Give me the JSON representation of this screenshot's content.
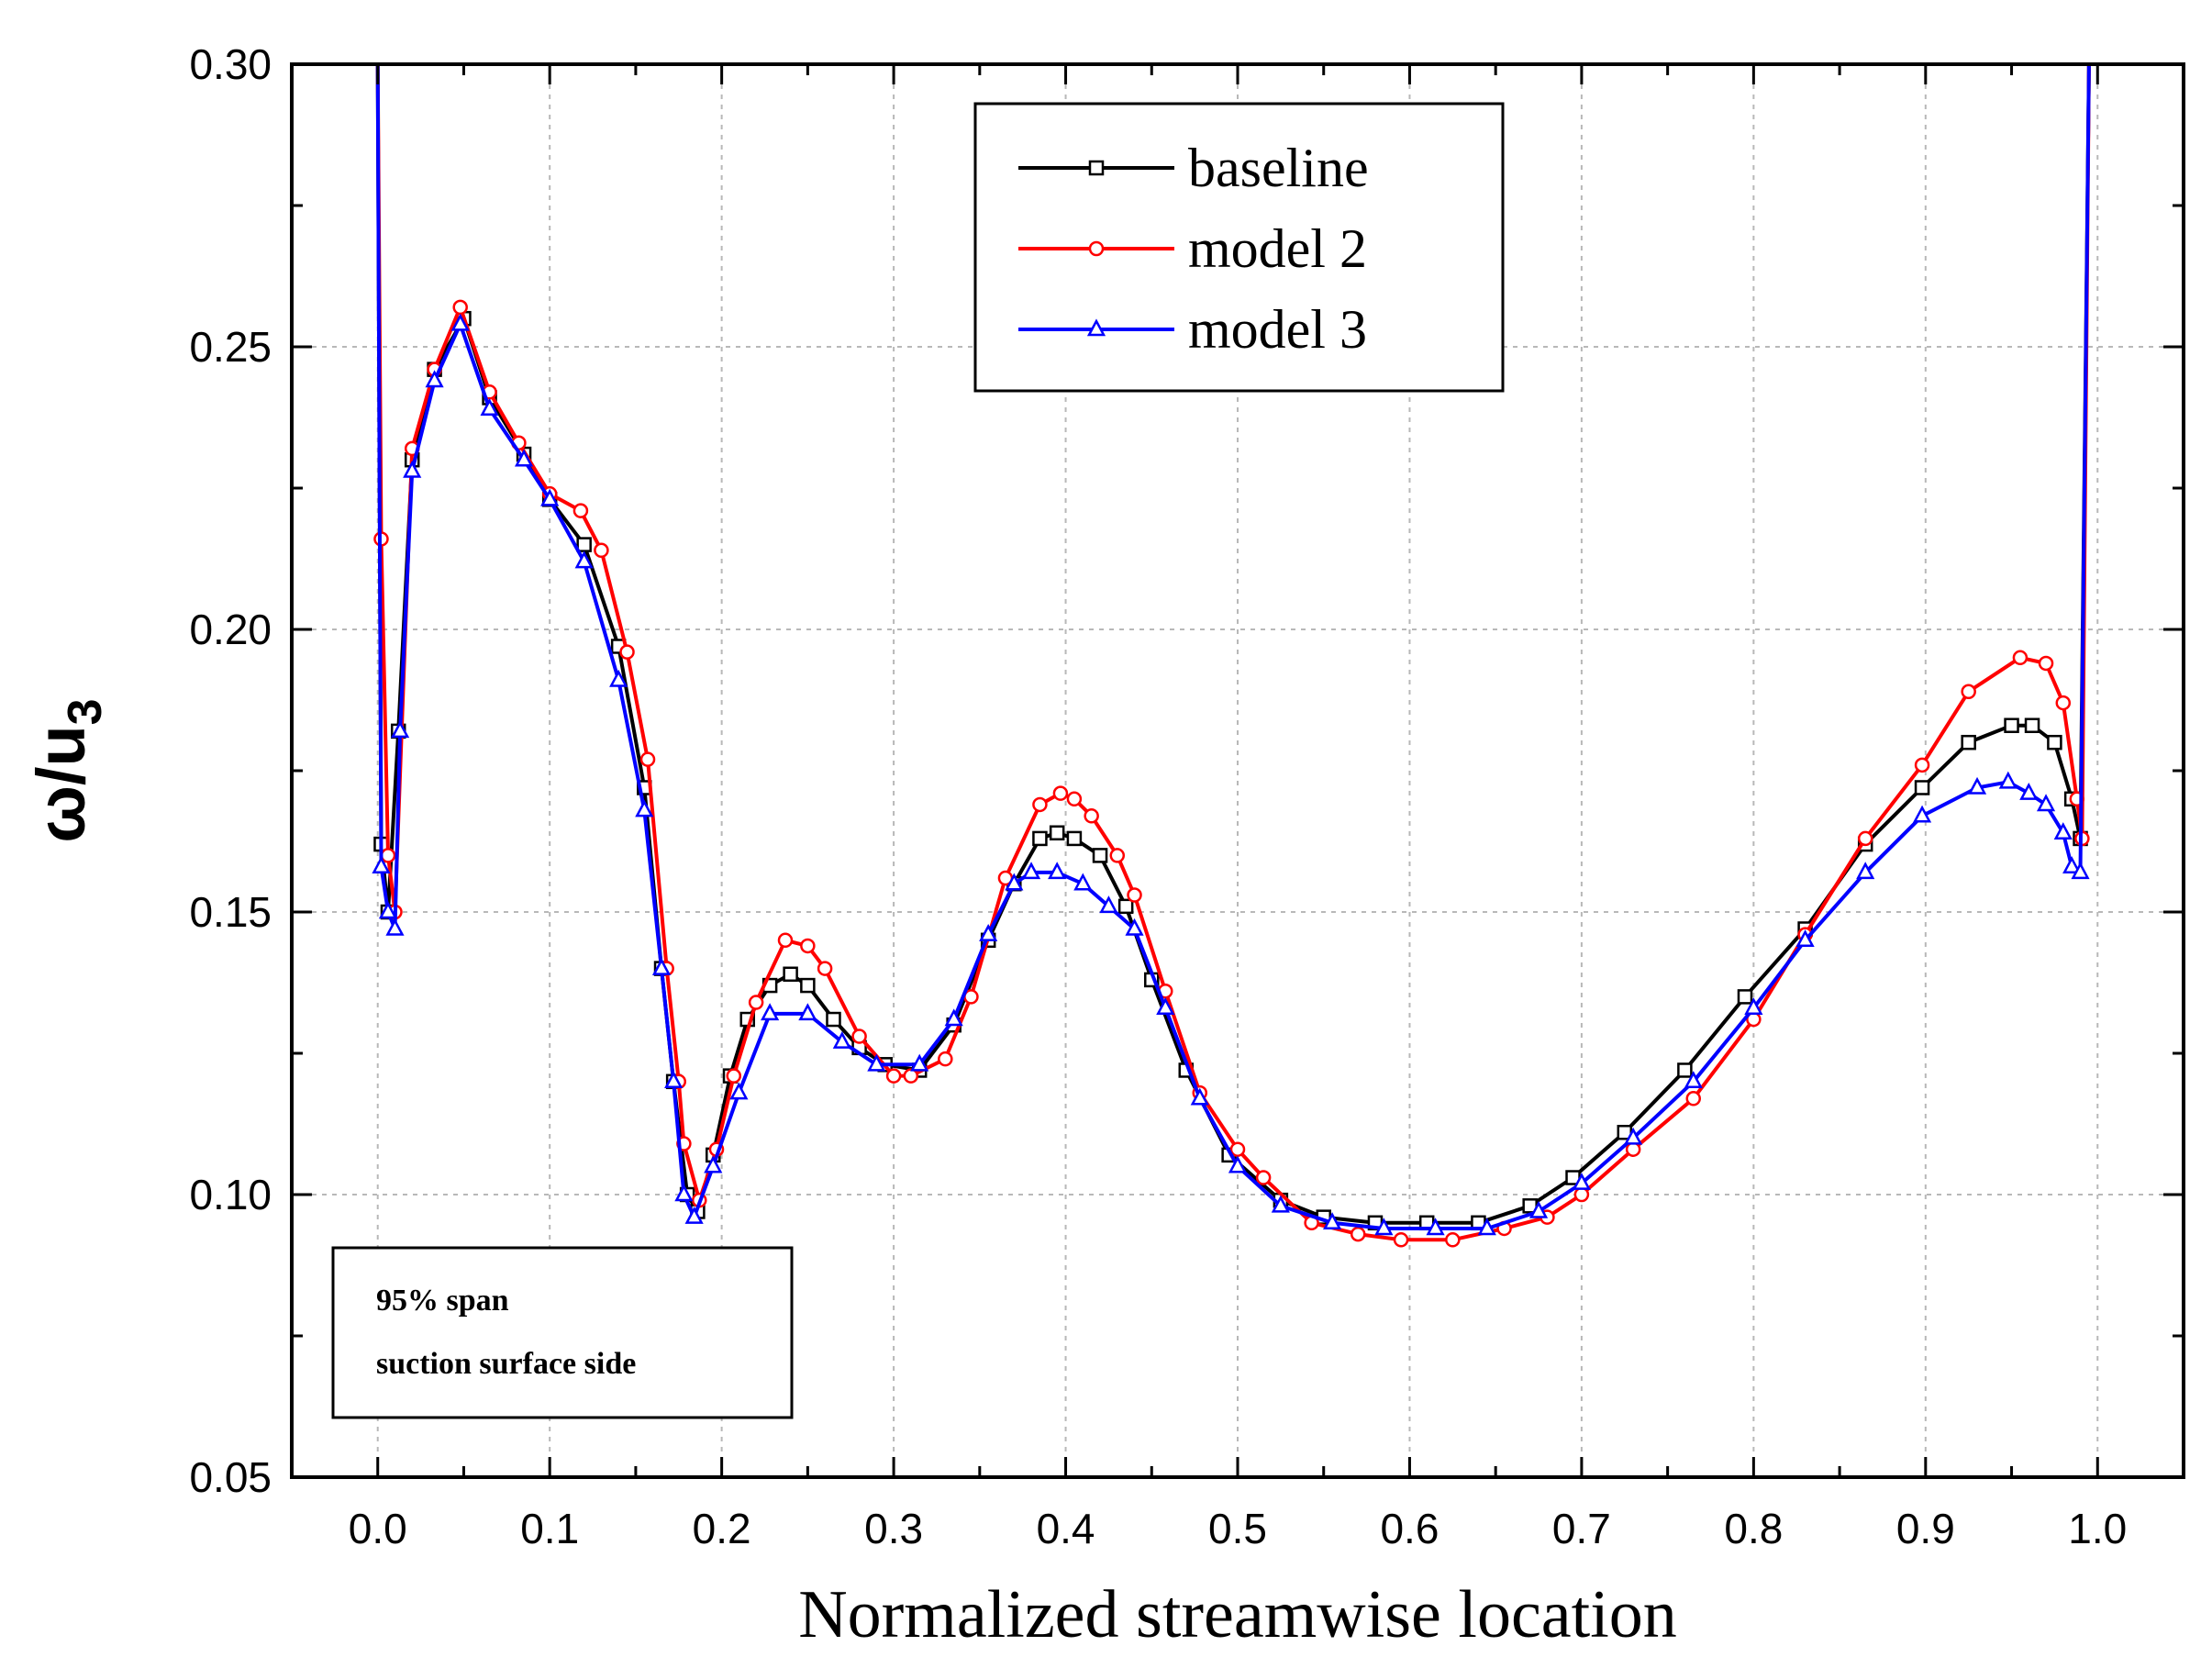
{
  "chart_data": {
    "type": "line",
    "title": "",
    "xlabel": "Normalized streamwise location",
    "ylabel": {
      "base": "ω/u",
      "sub": "3"
    },
    "xlim": [
      -0.05,
      1.05
    ],
    "ylim": [
      0.05,
      0.3
    ],
    "xticks": [
      0.0,
      0.1,
      0.2,
      0.3,
      0.4,
      0.5,
      0.6,
      0.7,
      0.8,
      0.9,
      1.0
    ],
    "xtick_labels": [
      "0.0",
      "0.1",
      "0.2",
      "0.3",
      "0.4",
      "0.5",
      "0.6",
      "0.7",
      "0.8",
      "0.9",
      "1.0"
    ],
    "yticks": [
      0.05,
      0.1,
      0.15,
      0.2,
      0.25,
      0.3
    ],
    "ytick_labels": [
      "0.05",
      "0.10",
      "0.15",
      "0.20",
      "0.25",
      "0.30"
    ],
    "grid": true,
    "legend": "top-center",
    "annotation": [
      "95% span",
      "suction surface side"
    ],
    "series": [
      {
        "name": "baseline",
        "color": "#000000",
        "marker": "square",
        "points": [
          [
            0.0,
            0.3
          ],
          [
            0.002,
            0.162
          ],
          [
            0.006,
            0.15
          ],
          [
            0.012,
            0.182
          ],
          [
            0.02,
            0.23
          ],
          [
            0.033,
            0.246
          ],
          [
            0.05,
            0.255
          ],
          [
            0.065,
            0.241
          ],
          [
            0.085,
            0.231
          ],
          [
            0.1,
            0.223
          ],
          [
            0.12,
            0.215
          ],
          [
            0.14,
            0.197
          ],
          [
            0.155,
            0.172
          ],
          [
            0.165,
            0.14
          ],
          [
            0.172,
            0.12
          ],
          [
            0.18,
            0.1
          ],
          [
            0.186,
            0.097
          ],
          [
            0.195,
            0.107
          ],
          [
            0.205,
            0.121
          ],
          [
            0.215,
            0.131
          ],
          [
            0.228,
            0.137
          ],
          [
            0.24,
            0.139
          ],
          [
            0.25,
            0.137
          ],
          [
            0.265,
            0.131
          ],
          [
            0.28,
            0.126
          ],
          [
            0.295,
            0.123
          ],
          [
            0.315,
            0.122
          ],
          [
            0.335,
            0.13
          ],
          [
            0.355,
            0.145
          ],
          [
            0.37,
            0.155
          ],
          [
            0.385,
            0.163
          ],
          [
            0.395,
            0.164
          ],
          [
            0.405,
            0.163
          ],
          [
            0.42,
            0.16
          ],
          [
            0.435,
            0.151
          ],
          [
            0.45,
            0.138
          ],
          [
            0.47,
            0.122
          ],
          [
            0.495,
            0.107
          ],
          [
            0.525,
            0.099
          ],
          [
            0.55,
            0.096
          ],
          [
            0.58,
            0.095
          ],
          [
            0.61,
            0.095
          ],
          [
            0.64,
            0.095
          ],
          [
            0.67,
            0.098
          ],
          [
            0.695,
            0.103
          ],
          [
            0.725,
            0.111
          ],
          [
            0.76,
            0.122
          ],
          [
            0.795,
            0.135
          ],
          [
            0.83,
            0.147
          ],
          [
            0.865,
            0.162
          ],
          [
            0.898,
            0.172
          ],
          [
            0.925,
            0.18
          ],
          [
            0.95,
            0.183
          ],
          [
            0.962,
            0.183
          ],
          [
            0.975,
            0.18
          ],
          [
            0.985,
            0.17
          ],
          [
            0.99,
            0.163
          ],
          [
            0.995,
            0.3
          ]
        ]
      },
      {
        "name": "model 2",
        "color": "#ff0000",
        "marker": "circle",
        "points": [
          [
            0.0,
            0.3
          ],
          [
            0.002,
            0.216
          ],
          [
            0.006,
            0.16
          ],
          [
            0.01,
            0.15
          ],
          [
            0.02,
            0.232
          ],
          [
            0.033,
            0.246
          ],
          [
            0.048,
            0.257
          ],
          [
            0.065,
            0.242
          ],
          [
            0.082,
            0.233
          ],
          [
            0.1,
            0.224
          ],
          [
            0.118,
            0.221
          ],
          [
            0.13,
            0.214
          ],
          [
            0.145,
            0.196
          ],
          [
            0.157,
            0.177
          ],
          [
            0.168,
            0.14
          ],
          [
            0.175,
            0.12
          ],
          [
            0.178,
            0.109
          ],
          [
            0.187,
            0.099
          ],
          [
            0.197,
            0.108
          ],
          [
            0.207,
            0.121
          ],
          [
            0.22,
            0.134
          ],
          [
            0.237,
            0.145
          ],
          [
            0.25,
            0.144
          ],
          [
            0.26,
            0.14
          ],
          [
            0.28,
            0.128
          ],
          [
            0.3,
            0.121
          ],
          [
            0.31,
            0.121
          ],
          [
            0.33,
            0.124
          ],
          [
            0.345,
            0.135
          ],
          [
            0.365,
            0.156
          ],
          [
            0.385,
            0.169
          ],
          [
            0.397,
            0.171
          ],
          [
            0.405,
            0.17
          ],
          [
            0.415,
            0.167
          ],
          [
            0.43,
            0.16
          ],
          [
            0.44,
            0.153
          ],
          [
            0.458,
            0.136
          ],
          [
            0.478,
            0.118
          ],
          [
            0.5,
            0.108
          ],
          [
            0.515,
            0.103
          ],
          [
            0.543,
            0.095
          ],
          [
            0.57,
            0.093
          ],
          [
            0.595,
            0.092
          ],
          [
            0.625,
            0.092
          ],
          [
            0.655,
            0.094
          ],
          [
            0.68,
            0.096
          ],
          [
            0.7,
            0.1
          ],
          [
            0.73,
            0.108
          ],
          [
            0.765,
            0.117
          ],
          [
            0.8,
            0.131
          ],
          [
            0.83,
            0.146
          ],
          [
            0.865,
            0.163
          ],
          [
            0.898,
            0.176
          ],
          [
            0.925,
            0.189
          ],
          [
            0.955,
            0.195
          ],
          [
            0.97,
            0.194
          ],
          [
            0.98,
            0.187
          ],
          [
            0.988,
            0.17
          ],
          [
            0.991,
            0.163
          ],
          [
            0.995,
            0.3
          ]
        ]
      },
      {
        "name": "model 3",
        "color": "#0000ff",
        "marker": "triangle",
        "points": [
          [
            0.0,
            0.3
          ],
          [
            0.002,
            0.158
          ],
          [
            0.006,
            0.15
          ],
          [
            0.01,
            0.147
          ],
          [
            0.013,
            0.182
          ],
          [
            0.02,
            0.228
          ],
          [
            0.033,
            0.244
          ],
          [
            0.048,
            0.254
          ],
          [
            0.065,
            0.239
          ],
          [
            0.085,
            0.23
          ],
          [
            0.1,
            0.223
          ],
          [
            0.12,
            0.212
          ],
          [
            0.14,
            0.191
          ],
          [
            0.155,
            0.168
          ],
          [
            0.165,
            0.14
          ],
          [
            0.172,
            0.12
          ],
          [
            0.178,
            0.1
          ],
          [
            0.184,
            0.096
          ],
          [
            0.195,
            0.105
          ],
          [
            0.21,
            0.118
          ],
          [
            0.228,
            0.132
          ],
          [
            0.25,
            0.132
          ],
          [
            0.27,
            0.127
          ],
          [
            0.29,
            0.123
          ],
          [
            0.315,
            0.123
          ],
          [
            0.335,
            0.131
          ],
          [
            0.355,
            0.146
          ],
          [
            0.37,
            0.155
          ],
          [
            0.38,
            0.157
          ],
          [
            0.395,
            0.157
          ],
          [
            0.41,
            0.155
          ],
          [
            0.425,
            0.151
          ],
          [
            0.44,
            0.147
          ],
          [
            0.458,
            0.133
          ],
          [
            0.478,
            0.117
          ],
          [
            0.5,
            0.105
          ],
          [
            0.525,
            0.098
          ],
          [
            0.555,
            0.095
          ],
          [
            0.585,
            0.094
          ],
          [
            0.615,
            0.094
          ],
          [
            0.645,
            0.094
          ],
          [
            0.675,
            0.097
          ],
          [
            0.7,
            0.102
          ],
          [
            0.73,
            0.11
          ],
          [
            0.765,
            0.12
          ],
          [
            0.8,
            0.133
          ],
          [
            0.83,
            0.145
          ],
          [
            0.865,
            0.157
          ],
          [
            0.898,
            0.167
          ],
          [
            0.93,
            0.172
          ],
          [
            0.948,
            0.173
          ],
          [
            0.96,
            0.171
          ],
          [
            0.97,
            0.169
          ],
          [
            0.98,
            0.164
          ],
          [
            0.985,
            0.158
          ],
          [
            0.99,
            0.157
          ],
          [
            0.995,
            0.3
          ]
        ]
      }
    ]
  }
}
